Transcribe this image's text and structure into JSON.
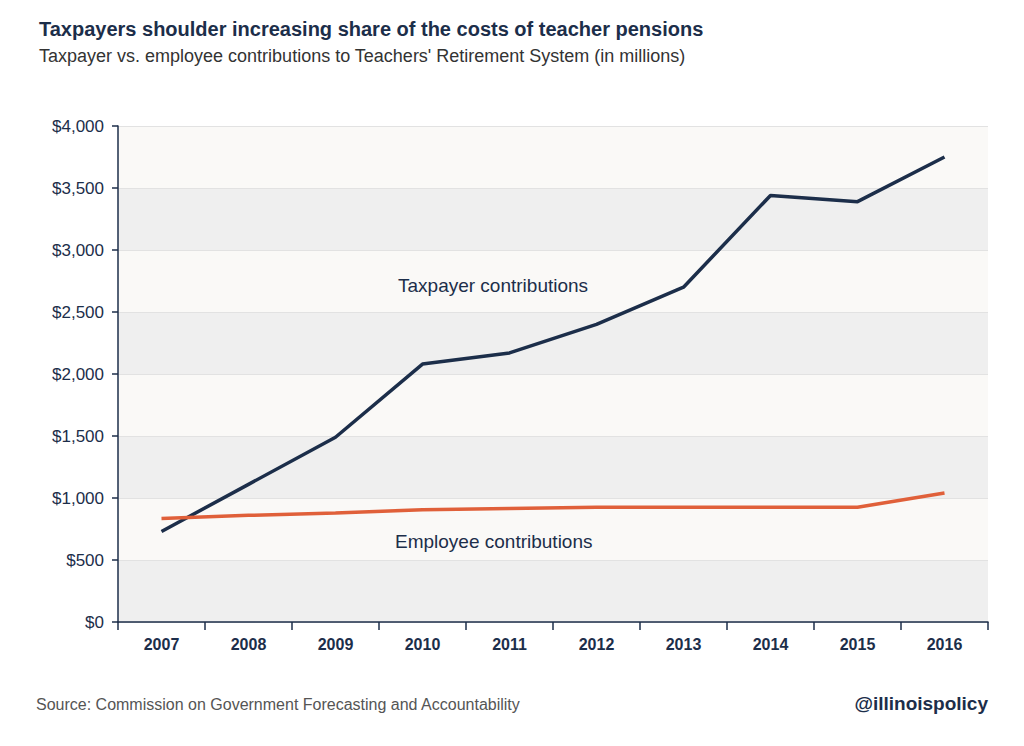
{
  "chart_data": {
    "type": "line",
    "title": "Taxpayers shoulder increasing share of the costs of teacher pensions",
    "subtitle": "Taxpayer vs. employee contributions to Teachers' Retirement System (in millions)",
    "source": "Source: Commission on Government Forecasting and Accountability",
    "credit": "@illinoispolicy",
    "categories": [
      "2007",
      "2008",
      "2009",
      "2010",
      "2011",
      "2012",
      "2013",
      "2014",
      "2015",
      "2016"
    ],
    "series": [
      {
        "name": "Taxpayer contributions",
        "color": "#1c2e4a",
        "values": [
          730,
          1110,
          1490,
          2080,
          2170,
          2400,
          2700,
          3440,
          3390,
          3750
        ]
      },
      {
        "name": "Employee contributions",
        "color": "#e0603a",
        "values": [
          835,
          860,
          880,
          905,
          915,
          925,
          925,
          925,
          925,
          1040
        ]
      }
    ],
    "ylim": [
      0,
      4000
    ],
    "yticks": [
      {
        "value": 0,
        "label": "$0"
      },
      {
        "value": 500,
        "label": "$500"
      },
      {
        "value": 1000,
        "label": "$1,000"
      },
      {
        "value": 1500,
        "label": "$1,500"
      },
      {
        "value": 2000,
        "label": "$2,000"
      },
      {
        "value": 2500,
        "label": "$2,500"
      },
      {
        "value": 3000,
        "label": "$3,000"
      },
      {
        "value": 3500,
        "label": "$3,500"
      },
      {
        "value": 4000,
        "label": "$4,000"
      }
    ],
    "grid": true
  }
}
